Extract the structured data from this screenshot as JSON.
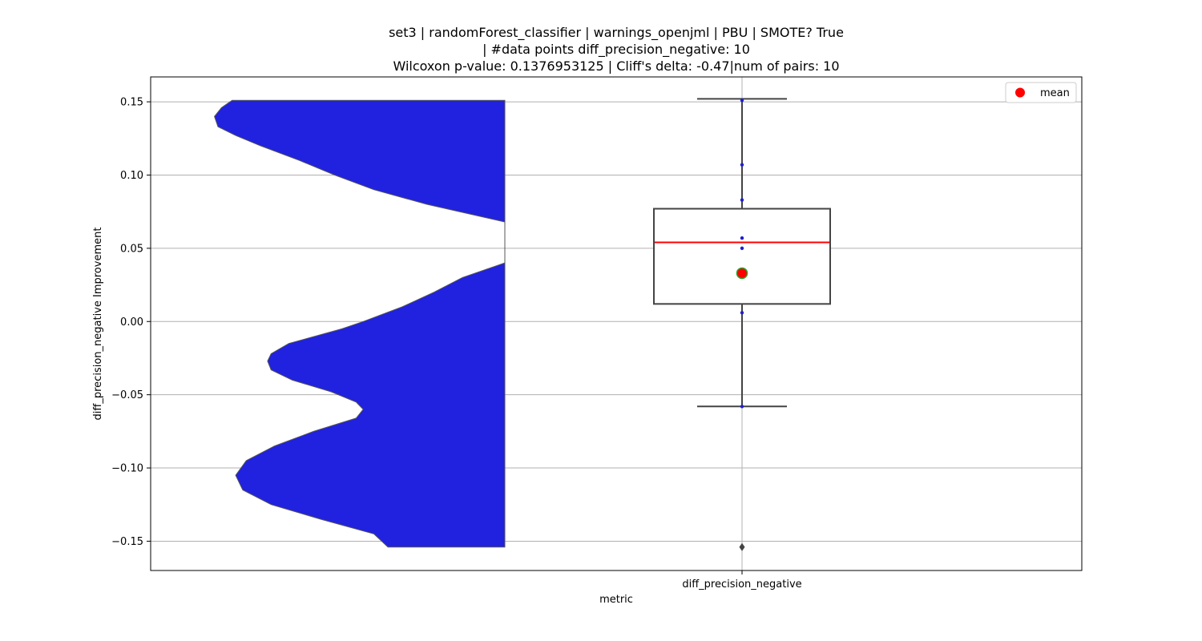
{
  "chart_data": {
    "type": "violin+box",
    "title_lines": [
      "set3 | randomForest_classifier | warnings_openjml | PBU | SMOTE? True",
      "| #data points diff_precision_negative: 10",
      "Wilcoxon p-value: 0.1376953125 | Cliff's delta: -0.47|num of pairs: 10"
    ],
    "xlabel": "metric",
    "ylabel": "diff_precision_negative Improvement",
    "categories": [
      "diff_precision_negative"
    ],
    "ylim": [
      -0.17,
      0.167
    ],
    "yticks": [
      -0.15,
      -0.1,
      -0.05,
      0.0,
      0.05,
      0.1,
      0.15
    ],
    "ytick_labels": [
      "−0.15",
      "−0.10",
      "−0.05",
      "0.00",
      "0.05",
      "0.10",
      "0.15"
    ],
    "grid": true,
    "legend": {
      "position": "top-right",
      "entries": [
        {
          "label": "mean",
          "color": "#ff0000"
        }
      ]
    },
    "violin": {
      "color": "#2121e0",
      "ymin": -0.154,
      "ymax": 0.151,
      "density_profile": [
        [
          0.151,
          0.77
        ],
        [
          0.146,
          0.8
        ],
        [
          0.14,
          0.82
        ],
        [
          0.133,
          0.81
        ],
        [
          0.127,
          0.76
        ],
        [
          0.12,
          0.69
        ],
        [
          0.11,
          0.58
        ],
        [
          0.1,
          0.48
        ],
        [
          0.09,
          0.37
        ],
        [
          0.08,
          0.22
        ],
        [
          0.068,
          0.0
        ],
        [
          0.04,
          0.0
        ],
        [
          0.03,
          0.12
        ],
        [
          0.02,
          0.2
        ],
        [
          0.01,
          0.29
        ],
        [
          0.0,
          0.4
        ],
        [
          -0.005,
          0.46
        ],
        [
          -0.015,
          0.61
        ],
        [
          -0.022,
          0.66
        ],
        [
          -0.027,
          0.67
        ],
        [
          -0.033,
          0.66
        ],
        [
          -0.04,
          0.6
        ],
        [
          -0.048,
          0.49
        ],
        [
          -0.055,
          0.42
        ],
        [
          -0.06,
          0.4
        ],
        [
          -0.066,
          0.42
        ],
        [
          -0.075,
          0.54
        ],
        [
          -0.085,
          0.65
        ],
        [
          -0.095,
          0.73
        ],
        [
          -0.105,
          0.76
        ],
        [
          -0.115,
          0.74
        ],
        [
          -0.125,
          0.66
        ],
        [
          -0.135,
          0.52
        ],
        [
          -0.145,
          0.37
        ],
        [
          -0.154,
          0.33
        ]
      ]
    },
    "box": {
      "q1": 0.012,
      "median": 0.054,
      "q3": 0.077,
      "whisker_low": -0.058,
      "whisker_high": 0.152,
      "mean": 0.033,
      "outliers": [
        -0.154
      ]
    },
    "points": [
      0.151,
      0.107,
      0.083,
      0.057,
      0.05,
      0.006,
      -0.058
    ],
    "colors": {
      "median": "#ff0000",
      "mean_fill": "#ff0000",
      "mean_edge": "#2ca02c",
      "box_edge": "#444444",
      "points": "#1f1fd6"
    }
  }
}
